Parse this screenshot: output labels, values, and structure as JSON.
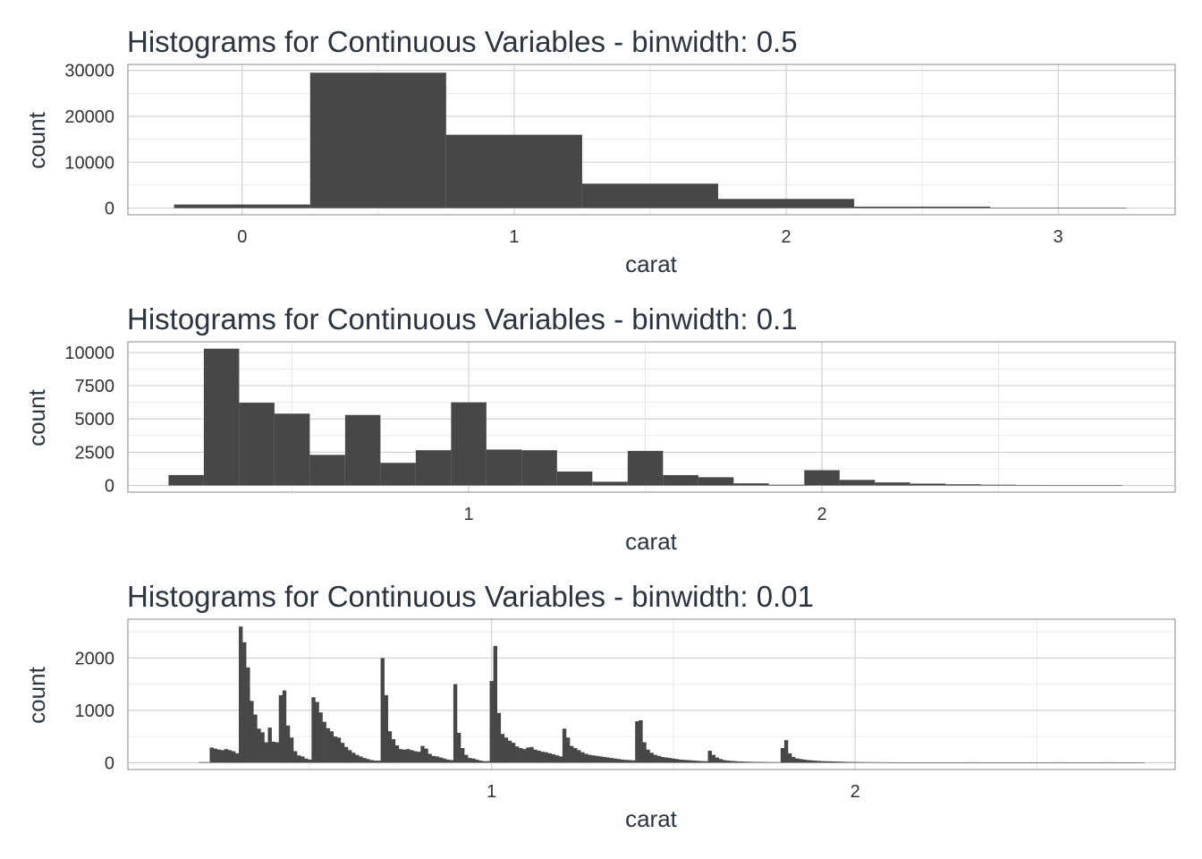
{
  "colors": {
    "bar": "#474747",
    "background": "#ffffff",
    "grid": "#cfcfcf",
    "text": "#2b3440"
  },
  "chart_data": [
    {
      "type": "bar",
      "title": "Histograms for Continuous Variables - binwidth: 0.5",
      "xlabel": "carat",
      "ylabel": "count",
      "xlim": [
        -0.42,
        3.43
      ],
      "ylim": [
        -1450,
        31300
      ],
      "xticks": [
        0,
        1,
        2,
        3
      ],
      "xtick_labels": [
        "0",
        "1",
        "2",
        "3"
      ],
      "yticks": [
        0,
        10000,
        20000,
        30000
      ],
      "ytick_labels": [
        "0",
        "10000",
        "20000",
        "30000"
      ],
      "binwidth": 0.5,
      "bins": [
        {
          "start": -0.25,
          "end": 0.25,
          "count": 785
        },
        {
          "start": 0.25,
          "end": 0.75,
          "count": 29498
        },
        {
          "start": 0.75,
          "end": 1.25,
          "count": 15977
        },
        {
          "start": 1.25,
          "end": 1.75,
          "count": 5313
        },
        {
          "start": 1.75,
          "end": 2.25,
          "count": 2002
        },
        {
          "start": 2.25,
          "end": 2.75,
          "count": 322
        },
        {
          "start": 2.75,
          "end": 3.25,
          "count": 32
        }
      ]
    },
    {
      "type": "bar",
      "title": "Histograms for Continuous Variables - binwidth: 0.1",
      "xlabel": "carat",
      "ylabel": "count",
      "xlim": [
        0.035,
        3.0
      ],
      "ylim": [
        -500,
        10800
      ],
      "xticks": [
        1,
        2
      ],
      "xtick_labels": [
        "1",
        "2"
      ],
      "yticks": [
        0,
        2500,
        5000,
        7500,
        10000
      ],
      "ytick_labels": [
        "0",
        "2500",
        "5000",
        "7500",
        "10000"
      ],
      "binwidth": 0.1,
      "bins": [
        {
          "start": 0.15,
          "end": 0.25,
          "count": 785
        },
        {
          "start": 0.25,
          "end": 0.35,
          "count": 10282
        },
        {
          "start": 0.35,
          "end": 0.45,
          "count": 6221
        },
        {
          "start": 0.45,
          "end": 0.55,
          "count": 5400
        },
        {
          "start": 0.55,
          "end": 0.65,
          "count": 2300
        },
        {
          "start": 0.65,
          "end": 0.75,
          "count": 5300
        },
        {
          "start": 0.75,
          "end": 0.85,
          "count": 1700
        },
        {
          "start": 0.85,
          "end": 0.95,
          "count": 2650
        },
        {
          "start": 0.95,
          "end": 1.05,
          "count": 6250
        },
        {
          "start": 1.05,
          "end": 1.15,
          "count": 2700
        },
        {
          "start": 1.15,
          "end": 1.25,
          "count": 2650
        },
        {
          "start": 1.25,
          "end": 1.35,
          "count": 1050
        },
        {
          "start": 1.35,
          "end": 1.45,
          "count": 280
        },
        {
          "start": 1.45,
          "end": 1.55,
          "count": 2600
        },
        {
          "start": 1.55,
          "end": 1.65,
          "count": 780
        },
        {
          "start": 1.65,
          "end": 1.75,
          "count": 620
        },
        {
          "start": 1.75,
          "end": 1.85,
          "count": 160
        },
        {
          "start": 1.85,
          "end": 1.95,
          "count": 60
        },
        {
          "start": 1.95,
          "end": 2.05,
          "count": 1150
        },
        {
          "start": 2.05,
          "end": 2.15,
          "count": 420
        },
        {
          "start": 2.15,
          "end": 2.25,
          "count": 230
        },
        {
          "start": 2.25,
          "end": 2.35,
          "count": 140
        },
        {
          "start": 2.35,
          "end": 2.45,
          "count": 90
        },
        {
          "start": 2.45,
          "end": 2.55,
          "count": 60
        },
        {
          "start": 2.55,
          "end": 2.65,
          "count": 30
        },
        {
          "start": 2.65,
          "end": 2.75,
          "count": 25
        },
        {
          "start": 2.75,
          "end": 2.85,
          "count": 15
        }
      ]
    },
    {
      "type": "bar",
      "title": "Histograms for Continuous Variables - binwidth: 0.01",
      "xlabel": "carat",
      "ylabel": "count",
      "xlim": [
        0.0,
        2.88
      ],
      "ylim": [
        -130,
        2740
      ],
      "xticks": [
        1,
        2
      ],
      "xtick_labels": [
        "1",
        "2"
      ],
      "yticks": [
        0,
        1000,
        2000
      ],
      "ytick_labels": [
        "0",
        "1000",
        "2000"
      ],
      "binwidth": 0.01,
      "bin_start": 0.195,
      "counts": [
        12,
        12,
        12,
        290,
        270,
        250,
        240,
        260,
        240,
        220,
        180,
        2600,
        2300,
        1820,
        1180,
        920,
        650,
        580,
        390,
        670,
        400,
        390,
        1290,
        1380,
        710,
        480,
        220,
        140,
        120,
        80,
        60,
        1250,
        1160,
        960,
        780,
        660,
        600,
        500,
        480,
        380,
        300,
        240,
        190,
        150,
        120,
        90,
        70,
        50,
        40,
        40,
        2000,
        1290,
        600,
        450,
        330,
        260,
        250,
        260,
        240,
        220,
        210,
        320,
        270,
        170,
        130,
        120,
        100,
        80,
        60,
        50,
        1500,
        570,
        280,
        150,
        90,
        80,
        60,
        40,
        30,
        30,
        1560,
        2230,
        950,
        550,
        480,
        420,
        380,
        310,
        280,
        260,
        290,
        300,
        250,
        230,
        210,
        200,
        180,
        160,
        140,
        120,
        650,
        480,
        320,
        280,
        240,
        200,
        170,
        150,
        140,
        130,
        120,
        110,
        100,
        90,
        80,
        70,
        60,
        55,
        50,
        45,
        790,
        810,
        390,
        250,
        190,
        150,
        130,
        110,
        100,
        90,
        80,
        70,
        60,
        55,
        50,
        45,
        40,
        35,
        30,
        28,
        230,
        150,
        100,
        70,
        50,
        40,
        35,
        30,
        25,
        22,
        20,
        18,
        16,
        15,
        14,
        13,
        12,
        11,
        10,
        10,
        280,
        430,
        180,
        110,
        80,
        70,
        60,
        50,
        45,
        40,
        35,
        30,
        28,
        26,
        24,
        22,
        20,
        18,
        16,
        15,
        14,
        13,
        12,
        11,
        10,
        10,
        9,
        9,
        8,
        8,
        7,
        7,
        6,
        6,
        6,
        5,
        5,
        5,
        5,
        5,
        5,
        4,
        4,
        4,
        4,
        4,
        4,
        4,
        3,
        3,
        3,
        3,
        3,
        3,
        3,
        3,
        2,
        2,
        2,
        2,
        2,
        2,
        2,
        2,
        2,
        2,
        2,
        2,
        2,
        2,
        2,
        2,
        2,
        2,
        2,
        2,
        2,
        2,
        2,
        2,
        2,
        2,
        2,
        2,
        2,
        2,
        2,
        2,
        2,
        2,
        2,
        2,
        2,
        2,
        2,
        2,
        2,
        2,
        2,
        2
      ]
    }
  ]
}
